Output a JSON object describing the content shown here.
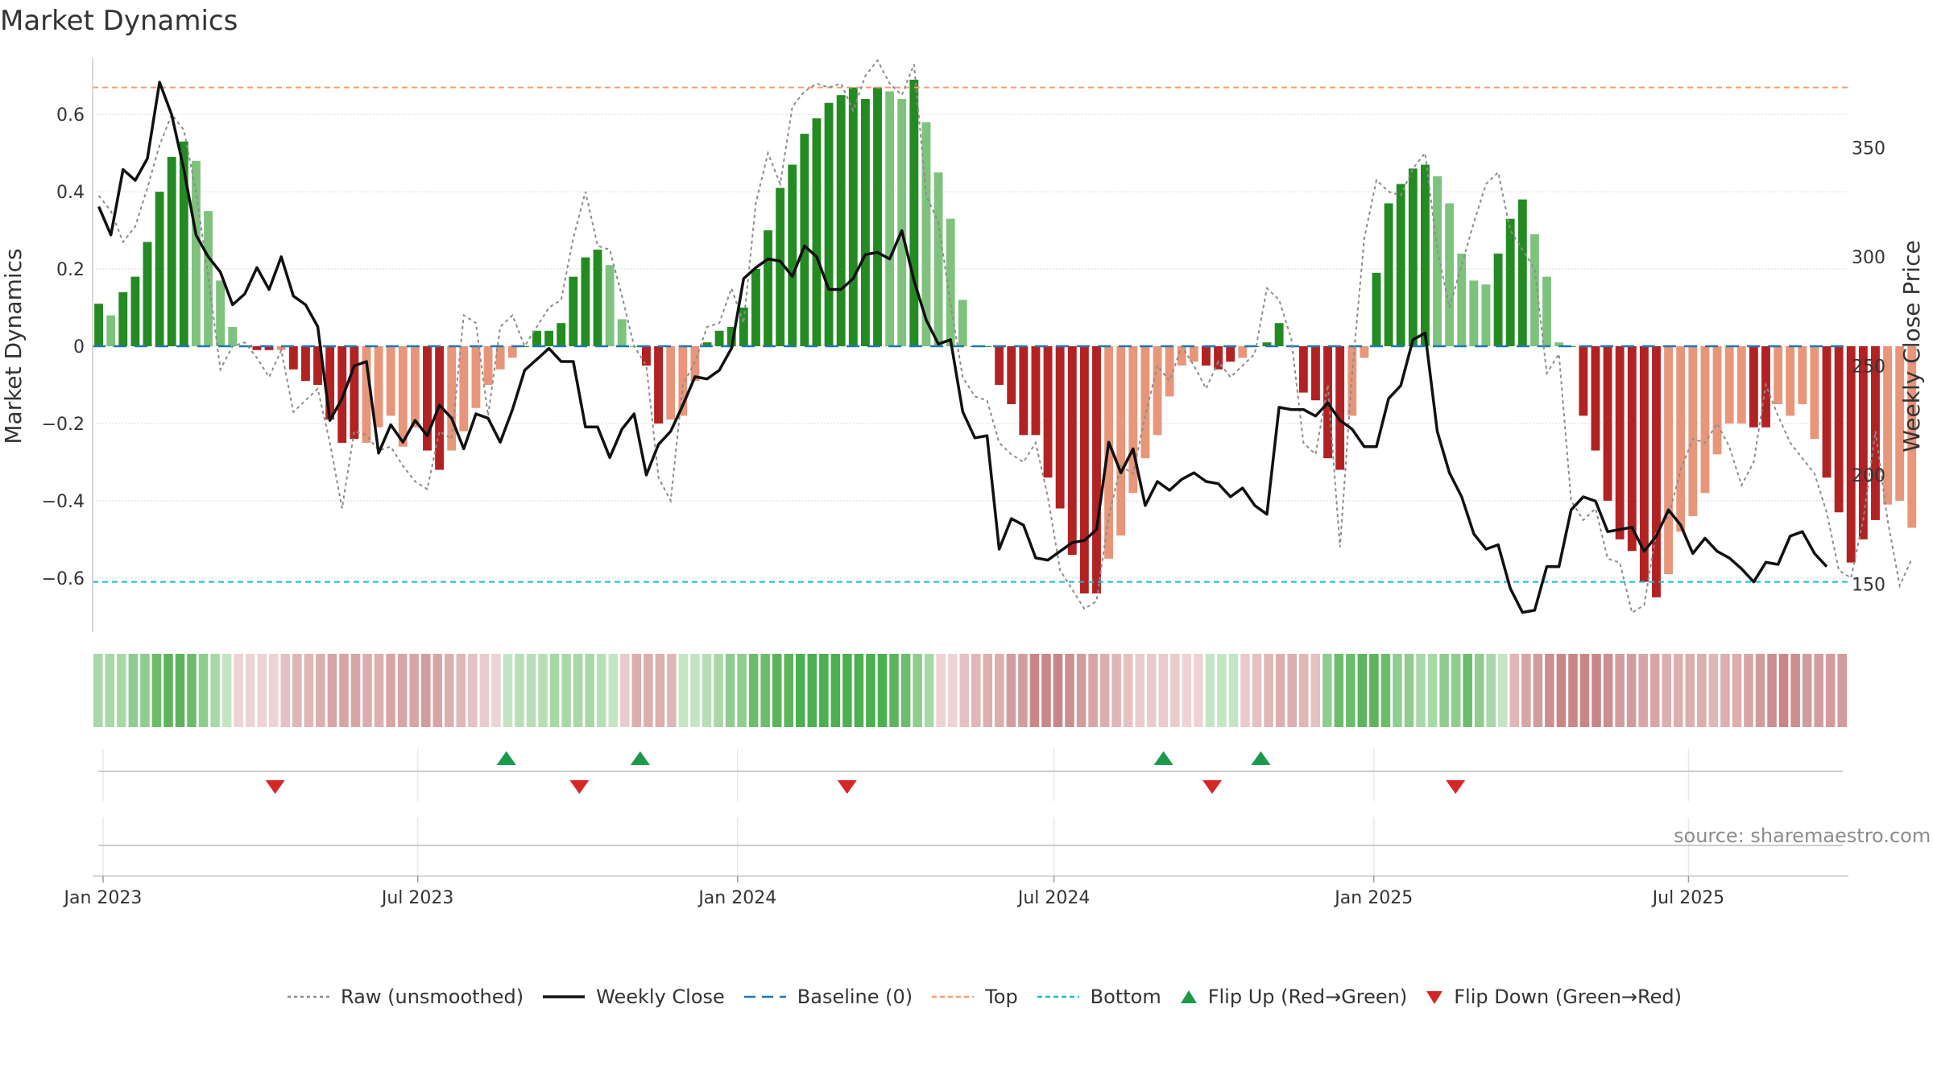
{
  "title": "Market Dynamics",
  "source": "source: sharemaestro.com",
  "legend": [
    {
      "key": "raw",
      "label": "Raw (unsmoothed)",
      "color": "#8c8c8c",
      "style": "dotted"
    },
    {
      "key": "close",
      "label": "Weekly Close",
      "color": "#111111",
      "style": "solid"
    },
    {
      "key": "baseline",
      "label": "Baseline (0)",
      "color": "#1f77b4",
      "style": "dashed"
    },
    {
      "key": "top",
      "label": "Top",
      "color": "#f0a070",
      "style": "dashed"
    },
    {
      "key": "bottom",
      "label": "Bottom",
      "color": "#17becf",
      "style": "dashed"
    },
    {
      "key": "flip_up",
      "label": "Flip Up (Red→Green)",
      "color": "#1a9a4a",
      "style": "triangle-up"
    },
    {
      "key": "flip_down",
      "label": "Flip Down (Green→Red)",
      "color": "#d62728",
      "style": "triangle-down"
    }
  ],
  "chart_data": {
    "type": "bar",
    "title": "Market Dynamics",
    "ylabel": "Market Dynamics",
    "y2label": "Weekly Close Price",
    "ylim": [
      -0.74,
      0.74
    ],
    "y2lim": [
      128,
      390
    ],
    "yticks": [
      0.6,
      0.4,
      0.2,
      0,
      -0.2,
      -0.4,
      -0.6
    ],
    "ytick_labels": [
      "0.6",
      "0.4",
      "0.2",
      "0",
      "−0.2",
      "−0.4",
      "−0.6"
    ],
    "y2ticks": [
      350,
      300,
      250,
      200,
      150
    ],
    "x_start": "2022-12-26",
    "x_end": "2025-10-01",
    "bar_start": "2022-12-26",
    "bar_interval_days": 7,
    "xticks": [
      {
        "date": "2023-01-01",
        "label": "Jan 2023"
      },
      {
        "date": "2023-07-01",
        "label": "Jul 2023"
      },
      {
        "date": "2024-01-01",
        "label": "Jan 2024"
      },
      {
        "date": "2024-07-01",
        "label": "Jul 2024"
      },
      {
        "date": "2025-01-01",
        "label": "Jan 2025"
      },
      {
        "date": "2025-07-01",
        "label": "Jul 2025"
      }
    ],
    "top_level": 0.67,
    "bottom_level": -0.61,
    "baseline": 0,
    "grid": true,
    "legend_position": "bottom",
    "colors": {
      "strong_up": "#238b22",
      "weak_up": "#7fc27e",
      "strong_down": "#b22222",
      "weak_down": "#e8967a",
      "raw": "#8c8c8c",
      "close": "#111111",
      "baseline": "#1f77b4",
      "top": "#f0a070",
      "bottom": "#17becf"
    },
    "dynamics": [
      0.11,
      0.08,
      0.14,
      0.18,
      0.27,
      0.4,
      0.49,
      0.53,
      0.48,
      0.35,
      0.17,
      0.05,
      0.0,
      -0.01,
      -0.01,
      -0.01,
      -0.06,
      -0.09,
      -0.1,
      -0.19,
      -0.25,
      -0.24,
      -0.25,
      -0.21,
      -0.18,
      -0.26,
      -0.21,
      -0.27,
      -0.32,
      -0.27,
      -0.22,
      -0.16,
      -0.1,
      -0.06,
      -0.03,
      0.0,
      0.04,
      0.04,
      0.06,
      0.18,
      0.23,
      0.25,
      0.21,
      0.07,
      0.0,
      -0.05,
      -0.2,
      -0.19,
      -0.18,
      -0.09,
      0.01,
      0.04,
      0.05,
      0.1,
      0.2,
      0.3,
      0.41,
      0.47,
      0.55,
      0.59,
      0.63,
      0.65,
      0.67,
      0.64,
      0.67,
      0.66,
      0.64,
      0.69,
      0.58,
      0.45,
      0.33,
      0.12,
      0.0,
      0.0,
      -0.1,
      -0.15,
      -0.23,
      -0.23,
      -0.34,
      -0.42,
      -0.54,
      -0.64,
      -0.64,
      -0.55,
      -0.49,
      -0.38,
      -0.29,
      -0.23,
      -0.13,
      -0.05,
      -0.04,
      -0.05,
      -0.06,
      -0.04,
      -0.03,
      0.0,
      0.01,
      0.06,
      0.0,
      -0.12,
      -0.14,
      -0.29,
      -0.32,
      -0.18,
      -0.03,
      0.19,
      0.37,
      0.42,
      0.46,
      0.47,
      0.44,
      0.37,
      0.24,
      0.17,
      0.16,
      0.24,
      0.33,
      0.38,
      0.29,
      0.18,
      0.01,
      0.0,
      -0.18,
      -0.27,
      -0.4,
      -0.5,
      -0.53,
      -0.61,
      -0.65,
      -0.59,
      -0.48,
      -0.44,
      -0.38,
      -0.28,
      -0.2,
      -0.2,
      -0.21,
      -0.21,
      -0.15,
      -0.18,
      -0.15,
      -0.24,
      -0.34,
      -0.43,
      -0.56,
      -0.5,
      -0.45,
      -0.41,
      -0.4,
      -0.47
    ],
    "strength": [
      "s",
      "w",
      "s",
      "s",
      "s",
      "s",
      "s",
      "s",
      "w",
      "w",
      "w",
      "w",
      "s",
      "s",
      "s",
      "w",
      "s",
      "s",
      "s",
      "s",
      "s",
      "s",
      "w",
      "w",
      "w",
      "w",
      "w",
      "s",
      "s",
      "w",
      "w",
      "w",
      "w",
      "w",
      "w",
      "s",
      "s",
      "s",
      "s",
      "s",
      "s",
      "s",
      "w",
      "w",
      "w",
      "s",
      "s",
      "w",
      "w",
      "w",
      "s",
      "s",
      "s",
      "s",
      "s",
      "s",
      "s",
      "s",
      "s",
      "s",
      "s",
      "s",
      "s",
      "s",
      "s",
      "w",
      "w",
      "s",
      "w",
      "w",
      "w",
      "w",
      "s",
      "s",
      "s",
      "s",
      "s",
      "s",
      "s",
      "s",
      "s",
      "s",
      "s",
      "w",
      "w",
      "w",
      "w",
      "w",
      "w",
      "w",
      "w",
      "s",
      "s",
      "s",
      "w",
      "s",
      "s",
      "s",
      "s",
      "s",
      "s",
      "s",
      "s",
      "w",
      "w",
      "s",
      "s",
      "s",
      "s",
      "s",
      "w",
      "w",
      "w",
      "w",
      "w",
      "s",
      "s",
      "s",
      "w",
      "w",
      "w",
      "s",
      "s",
      "s",
      "s",
      "s",
      "s",
      "s",
      "s",
      "w",
      "w",
      "w",
      "w",
      "w",
      "w",
      "w",
      "s",
      "s",
      "w",
      "w",
      "w",
      "w",
      "s",
      "s",
      "s",
      "s",
      "s",
      "w",
      "w",
      "w",
      "s"
    ],
    "raw": [
      0.39,
      0.35,
      0.27,
      0.31,
      0.41,
      0.52,
      0.6,
      0.56,
      0.4,
      0.18,
      -0.06,
      0.0,
      0.01,
      -0.03,
      -0.08,
      -0.01,
      -0.17,
      -0.14,
      -0.11,
      -0.25,
      -0.42,
      -0.22,
      -0.23,
      -0.27,
      -0.26,
      -0.31,
      -0.35,
      -0.37,
      -0.22,
      -0.24,
      0.08,
      0.06,
      -0.18,
      0.05,
      0.08,
      0.0,
      0.05,
      0.1,
      0.12,
      0.28,
      0.4,
      0.26,
      0.25,
      0.13,
      0.0,
      -0.05,
      -0.34,
      -0.4,
      -0.1,
      -0.04,
      0.05,
      0.06,
      0.15,
      0.06,
      0.37,
      0.5,
      0.42,
      0.62,
      0.66,
      0.68,
      0.67,
      0.68,
      0.61,
      0.7,
      0.74,
      0.68,
      0.65,
      0.73,
      0.39,
      0.32,
      0.11,
      -0.08,
      -0.13,
      -0.14,
      -0.25,
      -0.28,
      -0.3,
      -0.25,
      -0.39,
      -0.58,
      -0.63,
      -0.68,
      -0.66,
      -0.44,
      -0.31,
      -0.33,
      -0.18,
      -0.05,
      -0.09,
      0.0,
      -0.05,
      -0.11,
      -0.04,
      -0.08,
      -0.05,
      -0.02,
      0.15,
      0.12,
      0.02,
      -0.25,
      -0.28,
      -0.1,
      -0.52,
      -0.07,
      0.28,
      0.43,
      0.4,
      0.39,
      0.46,
      0.5,
      0.25,
      0.1,
      0.21,
      0.32,
      0.42,
      0.45,
      0.3,
      0.25,
      0.2,
      -0.07,
      -0.02,
      -0.4,
      -0.45,
      -0.42,
      -0.55,
      -0.56,
      -0.69,
      -0.67,
      -0.48,
      -0.44,
      -0.32,
      -0.24,
      -0.25,
      -0.2,
      -0.26,
      -0.36,
      -0.3,
      -0.1,
      -0.18,
      -0.25,
      -0.29,
      -0.33,
      -0.43,
      -0.58,
      -0.6,
      -0.45,
      -0.22,
      -0.45,
      -0.62,
      -0.55
    ],
    "close": [
      323,
      310,
      340,
      335,
      345,
      380,
      365,
      340,
      310,
      300,
      293,
      278,
      283,
      295,
      285,
      300,
      282,
      278,
      268,
      225,
      235,
      250,
      252,
      210,
      223,
      215,
      225,
      218,
      232,
      226,
      212,
      228,
      226,
      215,
      230,
      248,
      253,
      258,
      252,
      252,
      222,
      222,
      208,
      221,
      228,
      200,
      214,
      220,
      232,
      245,
      244,
      248,
      258,
      290,
      295,
      299,
      298,
      291,
      305,
      300,
      285,
      285,
      290,
      301,
      302,
      299,
      312,
      289,
      271,
      260,
      262,
      229,
      217,
      218,
      166,
      180,
      177,
      162,
      161,
      165,
      169,
      170,
      175,
      215,
      201,
      212,
      186,
      197,
      193,
      198,
      201,
      197,
      196,
      190,
      194,
      186,
      182,
      231,
      230,
      230,
      227,
      233,
      225,
      221,
      213,
      213,
      235,
      241,
      262,
      265,
      220,
      201,
      190,
      173,
      166,
      168,
      148,
      137,
      138,
      158,
      158,
      184,
      190,
      188,
      174,
      175,
      176,
      165,
      172,
      184,
      177,
      164,
      171,
      165,
      162,
      157,
      151,
      160,
      159,
      172,
      174,
      164,
      158
    ],
    "band_colors": [
      "#a8d8a8",
      "#a8d8a8",
      "#a8d8a8",
      "#8fcc8f",
      "#8fcc8f",
      "#6bbd6b",
      "#5cb55c",
      "#5cb55c",
      "#6bbd6b",
      "#8fcc8f",
      "#a8d8a8",
      "#c4e5c4",
      "#edd3d3",
      "#edd3d3",
      "#edd3d3",
      "#edd3d3",
      "#e5c1c1",
      "#e0b6b6",
      "#e0b6b6",
      "#dcaeae",
      "#d8a5a5",
      "#d8a5a5",
      "#d8a5a5",
      "#dcaeae",
      "#dcaeae",
      "#d8a5a5",
      "#d8a5a5",
      "#d8a5a5",
      "#d39c9c",
      "#d8a5a5",
      "#dcaeae",
      "#e0b6b6",
      "#e5c1c1",
      "#e9cbcb",
      "#edd3d3",
      "#c4e5c4",
      "#b7dfb7",
      "#b7dfb7",
      "#b7dfb7",
      "#a8d8a8",
      "#a8d8a8",
      "#a8d8a8",
      "#a8d8a8",
      "#b7dfb7",
      "#c4e5c4",
      "#e9cbcb",
      "#dcaeae",
      "#dcaeae",
      "#dcaeae",
      "#e0b6b6",
      "#c4e5c4",
      "#c4e5c4",
      "#b7dfb7",
      "#a8d8a8",
      "#8fcc8f",
      "#8fcc8f",
      "#6bbd6b",
      "#6bbd6b",
      "#5cb55c",
      "#5cb55c",
      "#4caf50",
      "#4caf50",
      "#4caf50",
      "#4caf50",
      "#4caf50",
      "#4caf50",
      "#4caf50",
      "#4caf50",
      "#5cb55c",
      "#6bbd6b",
      "#8fcc8f",
      "#a8d8a8",
      "#edd3d3",
      "#edd3d3",
      "#e5c1c1",
      "#e0b6b6",
      "#dcaeae",
      "#dcaeae",
      "#d39c9c",
      "#d39c9c",
      "#c98686",
      "#c98686",
      "#c98686",
      "#cc8e8e",
      "#d39c9c",
      "#d8a5a5",
      "#dcaeae",
      "#e0b6b6",
      "#e5c1c1",
      "#e9cbcb",
      "#e9cbcb",
      "#e9cbcb",
      "#e9cbcb",
      "#edd3d3",
      "#edd3d3",
      "#c4e5c4",
      "#c4e5c4",
      "#c4e5c4",
      "#e9cbcb",
      "#e5c1c1",
      "#e0b6b6",
      "#dcaeae",
      "#dcaeae",
      "#e0b6b6",
      "#e5c1c1",
      "#8fcc8f",
      "#6bbd6b",
      "#6bbd6b",
      "#5cb55c",
      "#5cb55c",
      "#6bbd6b",
      "#8fcc8f",
      "#8fcc8f",
      "#a8d8a8",
      "#a8d8a8",
      "#8fcc8f",
      "#8fcc8f",
      "#6bbd6b",
      "#8fcc8f",
      "#a8d8a8",
      "#c4e5c4",
      "#e0b6b6",
      "#d8a5a5",
      "#d39c9c",
      "#cc8e8e",
      "#c98686",
      "#c98686",
      "#c98686",
      "#c98686",
      "#cc8e8e",
      "#d39c9c",
      "#d39c9c",
      "#d8a5a5",
      "#d8a5a5",
      "#dcaeae",
      "#dcaeae",
      "#dcaeae",
      "#dcaeae",
      "#e0b6b6",
      "#dcaeae",
      "#dcaeae",
      "#d8a5a5",
      "#d39c9c",
      "#cc8e8e",
      "#c98686",
      "#cc8e8e",
      "#d39c9c",
      "#d39c9c",
      "#d39c9c",
      "#d39c9c"
    ],
    "flips_up": [
      "2023-08-21",
      "2023-11-06",
      "2024-09-02",
      "2024-10-28"
    ],
    "flips_down": [
      "2023-04-10",
      "2023-10-02",
      "2024-03-04",
      "2024-09-30",
      "2025-02-17"
    ]
  }
}
